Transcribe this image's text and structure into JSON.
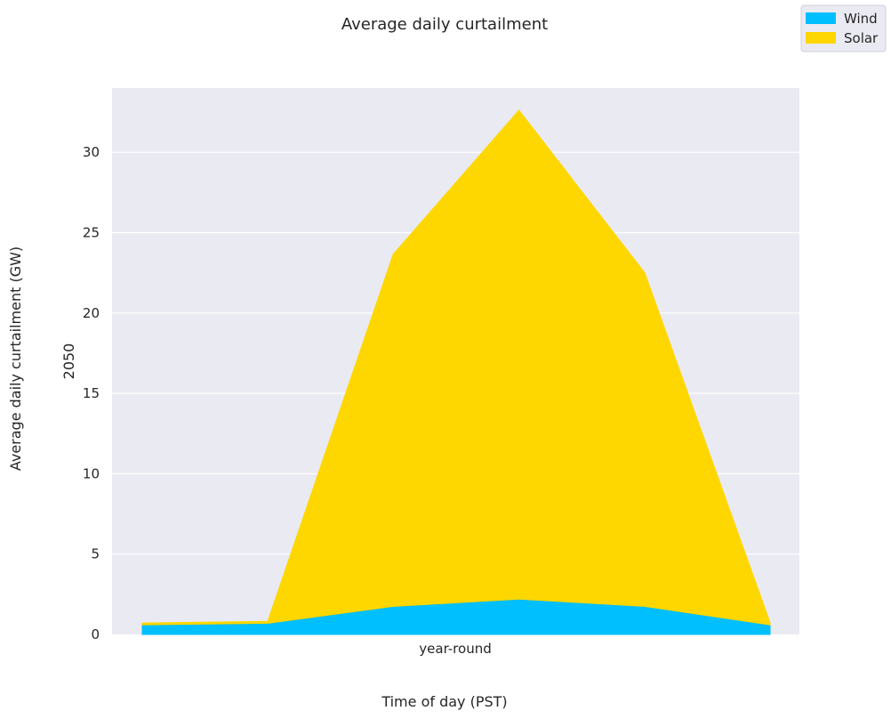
{
  "chart_data": {
    "type": "area",
    "stacked": true,
    "title": "Average daily curtailment",
    "ylabel_outer": "Average daily curtailment (GW)",
    "ylabel_inner": "2050",
    "xlabel": "Time of day (PST)",
    "x_category_label": "year-round",
    "x": [
      0,
      1,
      2,
      3,
      4,
      5
    ],
    "ylim": [
      0,
      34
    ],
    "yticks": [
      0,
      5,
      10,
      15,
      20,
      25,
      30
    ],
    "grid": true,
    "legend_position": "top-right",
    "series": [
      {
        "name": "Wind",
        "color": "#00BFFF",
        "values": [
          0.6,
          0.7,
          1.75,
          2.2,
          1.75,
          0.6
        ]
      },
      {
        "name": "Solar",
        "color": "#FFD700",
        "values": [
          0.1,
          0.1,
          21.9,
          30.4,
          20.75,
          0.1
        ]
      }
    ],
    "background_color": "#EAEAF2"
  }
}
